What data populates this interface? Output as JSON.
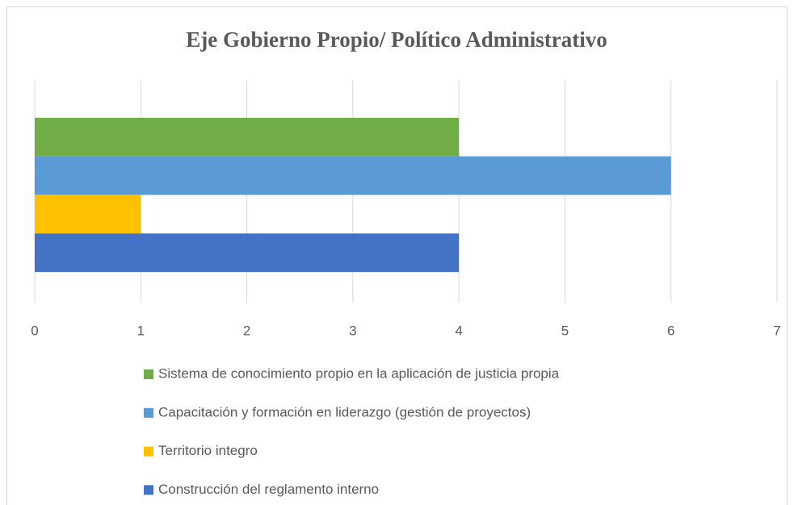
{
  "chart_data": {
    "type": "bar",
    "orientation": "horizontal",
    "title": "Eje Gobierno Propio/ Político Administrativo",
    "series": [
      {
        "name": "Sistema de conocimiento propio en la aplicación de justicia propia",
        "color": "#70ad47",
        "values": [
          4
        ]
      },
      {
        "name": "Capacitación y formación en liderazgo (gestión de proyectos)",
        "color": "#5b9bd5",
        "values": [
          6
        ]
      },
      {
        "name": "Territorio integro",
        "color": "#ffc000",
        "values": [
          1
        ]
      },
      {
        "name": "Construcción del reglamento interno",
        "color": "#4472c4",
        "values": [
          4
        ]
      }
    ],
    "xlim": [
      0,
      7
    ],
    "xticks": [
      0,
      1,
      2,
      3,
      4,
      5,
      6,
      7
    ],
    "grid": true,
    "legend": "bottom"
  }
}
